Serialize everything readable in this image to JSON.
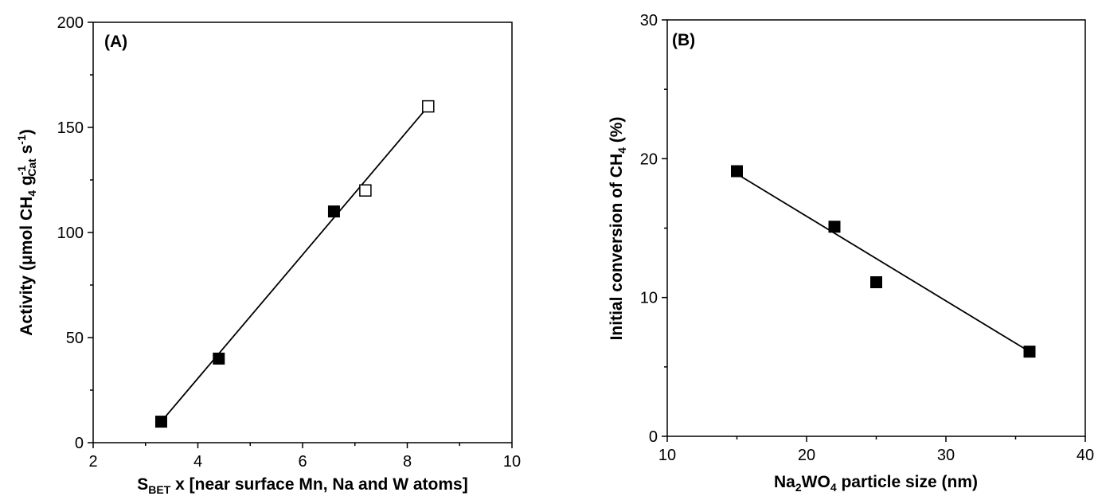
{
  "chart_data": [
    {
      "type": "scatter",
      "panel_label": "(A)",
      "xlabel": {
        "main": "S",
        "sub": "BET",
        "rest": " x [near surface Mn, Na and W atoms]"
      },
      "ylabel": {
        "p1": "Activity (μmol CH",
        "s1": "4",
        "p2": " g",
        "sup1": "-1",
        "s2": "Cat",
        "p3": " s",
        "sup2": "-1",
        "p4": ")"
      },
      "xlim": [
        2,
        10
      ],
      "ylim": [
        0,
        200
      ],
      "xticks": [
        "2",
        "4",
        "6",
        "8",
        "10"
      ],
      "yticks": [
        "0",
        "50",
        "100",
        "150",
        "200"
      ],
      "series": [
        {
          "marker": "filled-square",
          "x": [
            3.3,
            4.4,
            6.6
          ],
          "y": [
            10,
            40,
            110
          ]
        },
        {
          "marker": "open-square",
          "x": [
            7.2,
            8.4
          ],
          "y": [
            120,
            160
          ]
        }
      ],
      "fit_line": {
        "x": [
          3.3,
          8.4
        ],
        "y": [
          10,
          160
        ]
      }
    },
    {
      "type": "scatter",
      "panel_label": "(B)",
      "xlabel": {
        "p1": "Na",
        "s1": "2",
        "p2": "WO",
        "s2": "4",
        "p3": " particle size (nm)"
      },
      "ylabel": {
        "p1": "Initial conversion of CH",
        "s1": "4",
        "p2": " (%)"
      },
      "xlim": [
        10,
        40
      ],
      "ylim": [
        0,
        30
      ],
      "xticks": [
        "10",
        "20",
        "30",
        "40"
      ],
      "yticks": [
        "0",
        "10",
        "20",
        "30"
      ],
      "series": [
        {
          "marker": "filled-square",
          "x": [
            15,
            22,
            25,
            36
          ],
          "y": [
            19.1,
            15.1,
            11.1,
            6.1
          ]
        }
      ],
      "fit_line": {
        "x": [
          15,
          36
        ],
        "y": [
          18.9,
          6.1
        ]
      }
    }
  ]
}
